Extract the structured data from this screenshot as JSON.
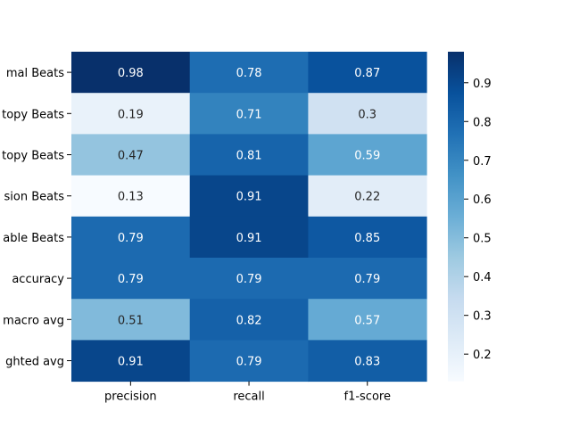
{
  "chart_data": {
    "type": "heatmap",
    "title": "",
    "xlabel": "",
    "ylabel": "",
    "columns": [
      "precision",
      "recall",
      "f1-score"
    ],
    "rows": [
      "mal Beats",
      "topy Beats",
      "topy Beats",
      "sion Beats",
      "able Beats",
      "accuracy",
      "macro avg",
      "ghted avg"
    ],
    "values": [
      [
        0.98,
        0.78,
        0.87
      ],
      [
        0.19,
        0.71,
        0.3
      ],
      [
        0.47,
        0.81,
        0.59
      ],
      [
        0.13,
        0.91,
        0.22
      ],
      [
        0.79,
        0.91,
        0.85
      ],
      [
        0.79,
        0.79,
        0.79
      ],
      [
        0.51,
        0.82,
        0.57
      ],
      [
        0.91,
        0.79,
        0.83
      ]
    ],
    "colorbar": {
      "min": 0.13,
      "max": 0.98,
      "ticks": [
        0.2,
        0.3,
        0.4,
        0.5,
        0.6,
        0.7,
        0.8,
        0.9
      ],
      "colormap": "Blues"
    }
  }
}
